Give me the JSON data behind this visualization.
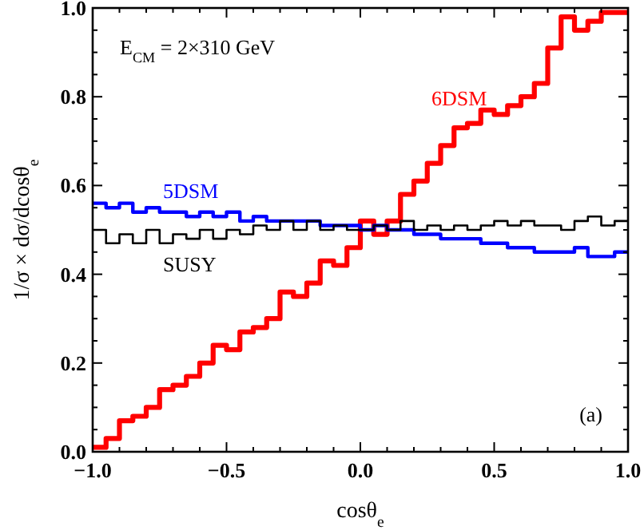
{
  "chart_data": {
    "type": "step",
    "xlabel": "cosθ$_{e}$",
    "ylabel": "1/σ × dσ/dcosθ$_{e}$",
    "annotations": [
      "E$_{CM}$ = 2×310 GeV",
      "(a)"
    ],
    "x": [
      -1,
      -0.95,
      -0.9,
      -0.85,
      -0.8,
      -0.75,
      -0.7,
      -0.65,
      -0.6,
      -0.55,
      -0.5,
      -0.45,
      -0.4,
      -0.35,
      -0.3,
      -0.25,
      -0.2,
      -0.15,
      -0.1,
      -0.05,
      0,
      0.05,
      0.1,
      0.15,
      0.2,
      0.25,
      0.3,
      0.35,
      0.4,
      0.45,
      0.5,
      0.55,
      0.6,
      0.65,
      0.7,
      0.75,
      0.8,
      0.85,
      0.9,
      0.95,
      1
    ],
    "series": [
      {
        "name": "6DSM",
        "color": "#ff0000",
        "values": [
          0.01,
          0.03,
          0.07,
          0.08,
          0.1,
          0.14,
          0.15,
          0.17,
          0.2,
          0.24,
          0.23,
          0.27,
          0.28,
          0.3,
          0.36,
          0.35,
          0.38,
          0.43,
          0.42,
          0.46,
          0.52,
          0.49,
          0.52,
          0.58,
          0.61,
          0.65,
          0.69,
          0.73,
          0.74,
          0.77,
          0.76,
          0.78,
          0.8,
          0.83,
          0.91,
          0.98,
          0.95,
          0.97,
          0.99,
          0.99,
          0.99
        ]
      },
      {
        "name": "5DSM",
        "color": "#0000ff",
        "values": [
          0.56,
          0.55,
          0.56,
          0.54,
          0.55,
          0.54,
          0.54,
          0.53,
          0.54,
          0.53,
          0.54,
          0.52,
          0.53,
          0.52,
          0.52,
          0.52,
          0.52,
          0.51,
          0.51,
          0.51,
          0.5,
          0.51,
          0.5,
          0.5,
          0.49,
          0.49,
          0.48,
          0.48,
          0.48,
          0.47,
          0.47,
          0.46,
          0.46,
          0.45,
          0.45,
          0.45,
          0.46,
          0.44,
          0.44,
          0.45,
          0.45
        ]
      },
      {
        "name": "SUSY",
        "color": "#000000",
        "values": [
          0.5,
          0.47,
          0.49,
          0.47,
          0.5,
          0.47,
          0.49,
          0.48,
          0.5,
          0.48,
          0.5,
          0.49,
          0.51,
          0.5,
          0.52,
          0.5,
          0.52,
          0.5,
          0.51,
          0.5,
          0.5,
          0.51,
          0.5,
          0.52,
          0.5,
          0.51,
          0.5,
          0.51,
          0.5,
          0.51,
          0.52,
          0.51,
          0.52,
          0.51,
          0.51,
          0.5,
          0.52,
          0.53,
          0.51,
          0.52,
          0.52
        ]
      }
    ],
    "xlim": [
      -1,
      1
    ],
    "xticks": [
      {
        "value": -1,
        "label": "−1.0"
      },
      {
        "value": -0.9,
        "label": null
      },
      {
        "value": -0.8,
        "label": null
      },
      {
        "value": -0.7,
        "label": null
      },
      {
        "value": -0.6,
        "label": null
      },
      {
        "value": -0.5,
        "label": "−0.5"
      },
      {
        "value": -0.4,
        "label": null
      },
      {
        "value": -0.3,
        "label": null
      },
      {
        "value": -0.2,
        "label": null
      },
      {
        "value": -0.1,
        "label": null
      },
      {
        "value": 0,
        "label": "0.0"
      },
      {
        "value": 0.1,
        "label": null
      },
      {
        "value": 0.2,
        "label": null
      },
      {
        "value": 0.3,
        "label": null
      },
      {
        "value": 0.4,
        "label": null
      },
      {
        "value": 0.5,
        "label": "0.5"
      },
      {
        "value": 0.6,
        "label": null
      },
      {
        "value": 0.7,
        "label": null
      },
      {
        "value": 0.8,
        "label": null
      },
      {
        "value": 0.9,
        "label": null
      },
      {
        "value": 1,
        "label": "1.0"
      }
    ],
    "ylim": [
      0,
      1
    ],
    "yticks": [
      {
        "value": 0,
        "label": "0.0"
      },
      {
        "value": 0.05,
        "label": null
      },
      {
        "value": 0.1,
        "label": null
      },
      {
        "value": 0.15,
        "label": null
      },
      {
        "value": 0.2,
        "label": "0.2"
      },
      {
        "value": 0.25,
        "label": null
      },
      {
        "value": 0.3,
        "label": null
      },
      {
        "value": 0.35,
        "label": null
      },
      {
        "value": 0.4,
        "label": "0.4"
      },
      {
        "value": 0.45,
        "label": null
      },
      {
        "value": 0.5,
        "label": null
      },
      {
        "value": 0.55,
        "label": null
      },
      {
        "value": 0.6,
        "label": "0.6"
      },
      {
        "value": 0.65,
        "label": null
      },
      {
        "value": 0.7,
        "label": null
      },
      {
        "value": 0.75,
        "label": null
      },
      {
        "value": 0.8,
        "label": "0.8"
      },
      {
        "value": 0.85,
        "label": null
      },
      {
        "value": 0.9,
        "label": null
      },
      {
        "value": 0.95,
        "label": null
      },
      {
        "value": 1,
        "label": "1.0"
      }
    ],
    "grid": false
  }
}
